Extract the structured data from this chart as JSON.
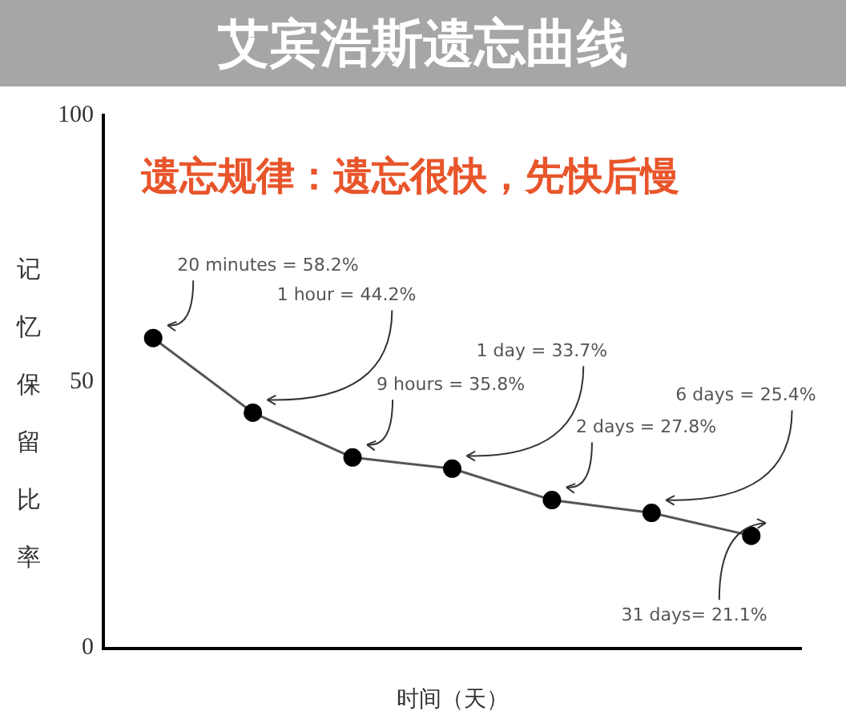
{
  "chart_data": {
    "type": "line",
    "title": "艾宾浩斯遗忘曲线",
    "subtitle": "遗忘规律：遗忘很快，先快后慢",
    "xlabel": "时间（天）",
    "ylabel": "记忆保留比率",
    "categories": [
      null,
      null,
      null,
      null,
      null,
      null,
      null
    ],
    "series": [
      {
        "color": "#555555",
        "values": [
          58.2,
          44.2,
          35.8,
          33.7,
          27.8,
          25.4,
          21.1
        ]
      }
    ],
    "annotations": [
      "20 minutes = 58.2%",
      "1 hour = 44.2%",
      "9 hours = 35.8%",
      "1 day = 33.7%",
      "2 days = 27.8%",
      "6 days = 25.4%",
      "31 days= 21.1%"
    ],
    "ylim": [
      0,
      100
    ],
    "yticks": [
      0,
      50,
      100
    ],
    "grid": false,
    "legend": false,
    "marker": "circle",
    "line_style": "solid"
  }
}
